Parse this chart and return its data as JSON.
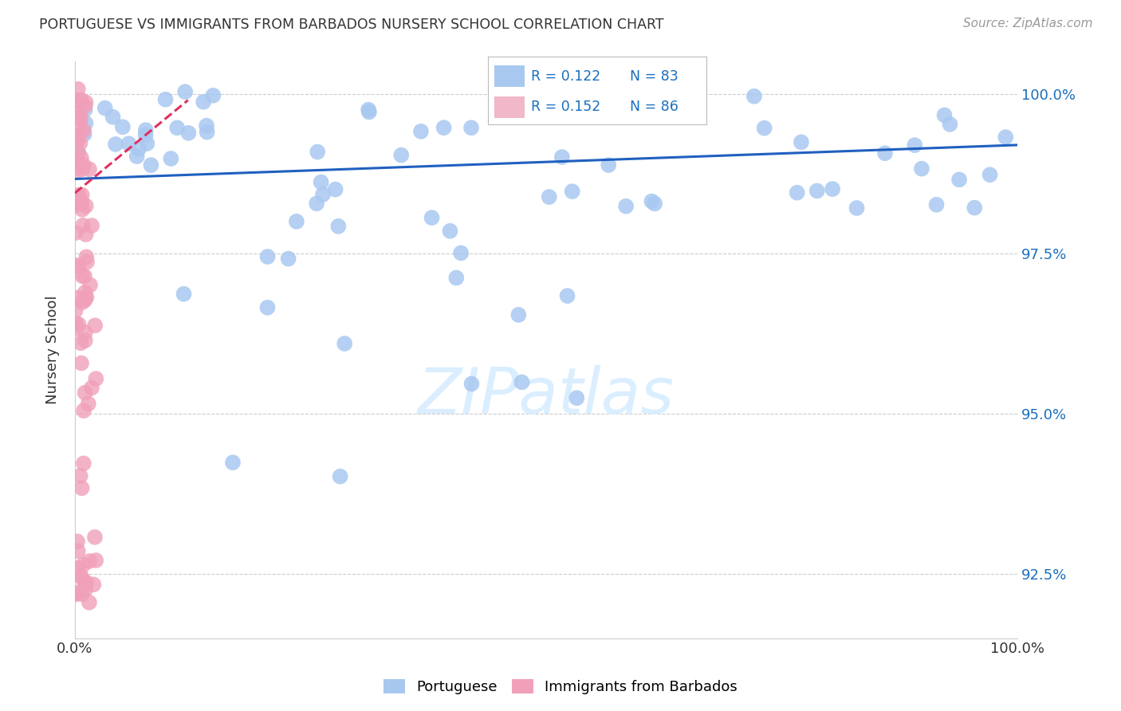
{
  "title": "PORTUGUESE VS IMMIGRANTS FROM BARBADOS NURSERY SCHOOL CORRELATION CHART",
  "source": "Source: ZipAtlas.com",
  "ylabel": "Nursery School",
  "xlim": [
    0,
    1.0
  ],
  "ylim": [
    0.915,
    1.005
  ],
  "ytick_positions": [
    0.925,
    0.95,
    0.975,
    1.0
  ],
  "ytick_labels": [
    "92.5%",
    "95.0%",
    "97.5%",
    "100.0%"
  ],
  "xtick_positions": [
    0.0,
    0.2,
    0.4,
    0.6,
    0.8,
    1.0
  ],
  "xtick_labels": [
    "0.0%",
    "",
    "",
    "",
    "",
    "100.0%"
  ],
  "blue_color": "#a8c8f0",
  "pink_color": "#f0a0b8",
  "blue_line_color": "#2060c0",
  "pink_line_color": "#e03060",
  "legend_blue_color": "#a8c8f0",
  "legend_pink_color": "#f0b8c8",
  "legend_text_color": "#1a6fbd",
  "watermark_color": "#daeeff",
  "grid_color": "#cccccc",
  "title_color": "#333333",
  "source_color": "#999999",
  "ylabel_color": "#333333",
  "tick_label_color": "#333333",
  "right_tick_color": "#1a6fbd",
  "blue_line_start_x": 0.0,
  "blue_line_start_y": 0.9867,
  "blue_line_end_x": 1.0,
  "blue_line_end_y": 0.992,
  "pink_line_start_x": 0.0,
  "pink_line_start_y": 0.9845,
  "pink_line_end_x": 0.12,
  "pink_line_end_y": 0.999
}
